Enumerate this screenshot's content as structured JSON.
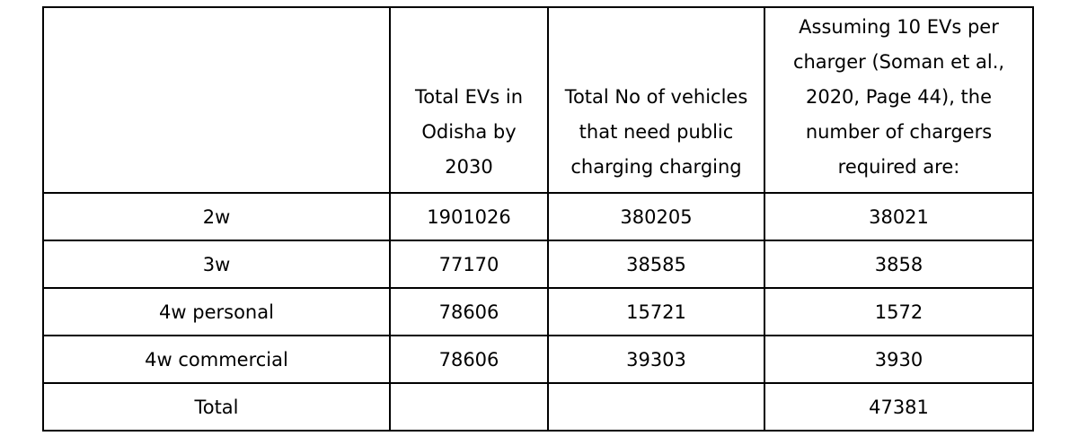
{
  "table": {
    "headers": [
      "",
      "Total EVs in Odisha by 2030",
      "Total No of vehicles that need public charging charging",
      "Assuming 10 EVs per charger (Soman et al., 2020, Page 44), the number of chargers required are:"
    ],
    "rows": [
      {
        "category": "2w",
        "total_evs": "1901026",
        "public_charging": "380205",
        "chargers": "38021"
      },
      {
        "category": "3w",
        "total_evs": "77170",
        "public_charging": "38585",
        "chargers": "3858"
      },
      {
        "category": "4w personal",
        "total_evs": "78606",
        "public_charging": "15721",
        "chargers": "1572"
      },
      {
        "category": "4w commercial",
        "total_evs": "78606",
        "public_charging": "39303",
        "chargers": "3930"
      },
      {
        "category": "Total",
        "total_evs": "",
        "public_charging": "",
        "chargers": "47381"
      }
    ]
  }
}
